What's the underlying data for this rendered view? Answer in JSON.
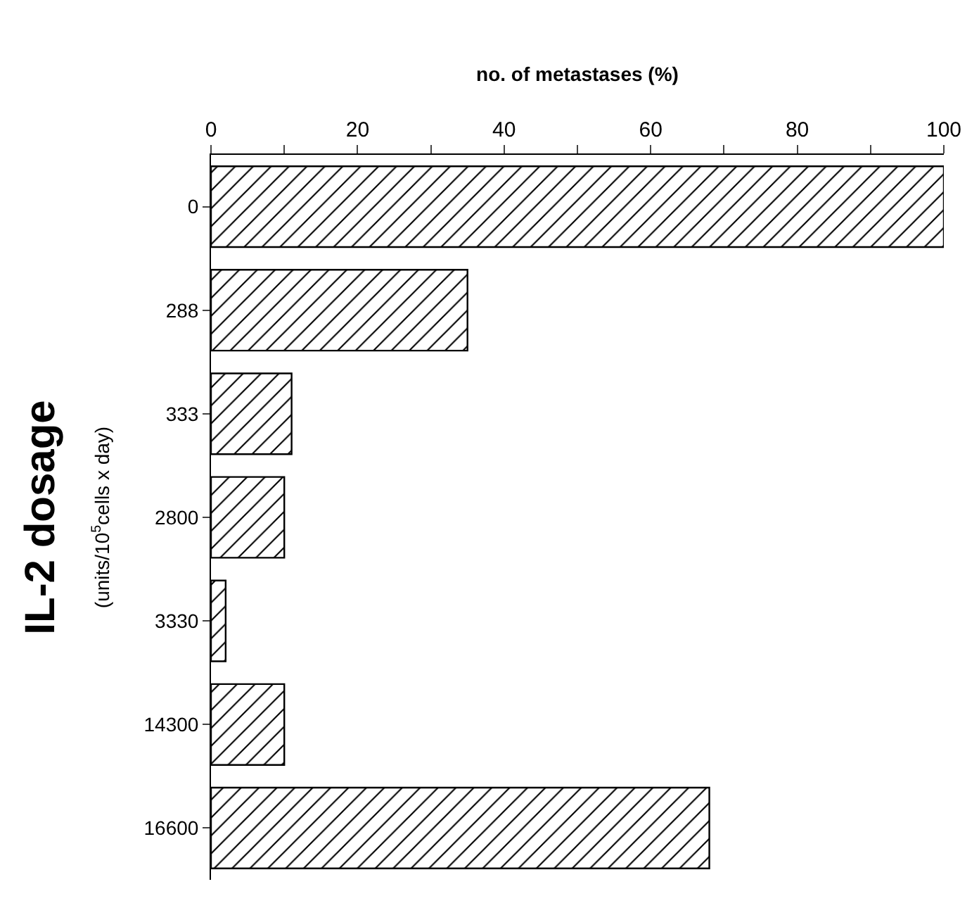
{
  "chart_data": {
    "type": "bar",
    "orientation": "horizontal",
    "xlabel": "no. of metastases (%)",
    "ylabel": "IL-2 dosage\n(units/10$^{5}$cells x day)",
    "categories": [
      "0",
      "288",
      "333",
      "2800",
      "3330",
      "14300",
      "16600"
    ],
    "values": [
      100,
      35,
      11,
      10,
      2,
      10,
      68
    ],
    "color": "#000000",
    "xlim": [
      0,
      100
    ],
    "xticks": [
      0,
      {
        "value": 10,
        "label": null
      },
      20,
      {
        "value": 30,
        "label": null
      },
      40,
      {
        "value": 50,
        "label": null
      },
      60,
      {
        "value": 70,
        "label": null
      },
      80,
      {
        "value": 90,
        "label": null
      },
      100
    ]
  }
}
